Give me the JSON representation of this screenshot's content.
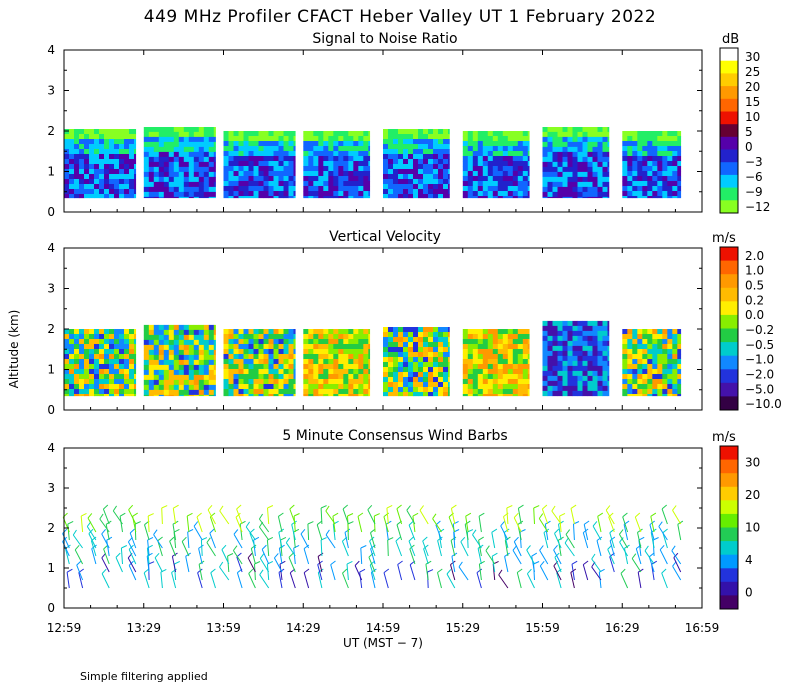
{
  "figure": {
    "title": "449 MHz Profiler CFACT Heber Valley UT  1 February 2022",
    "footnote": "Simple filtering applied",
    "xlabel": "UT  (MST − 7)",
    "ylabel": "Altitude (km)"
  },
  "chart_data": [
    {
      "type": "heatmap",
      "title": "Signal to Noise Ratio",
      "unit": "dB",
      "x_ticks": [
        "12:59",
        "13:29",
        "13:59",
        "14:29",
        "14:59",
        "15:29",
        "15:59",
        "16:29",
        "16:59"
      ],
      "y_ticks": [
        "0",
        "1",
        "2",
        "3",
        "4"
      ],
      "ylim": [
        0,
        4
      ],
      "colorbar_labels": [
        "30",
        "25",
        "20",
        "15",
        "10",
        "5",
        "0",
        "−3",
        "−6",
        "−9",
        "−12"
      ],
      "colorbar_colors": [
        "#ffffff",
        "#ffff00",
        "#ffcc00",
        "#ff9900",
        "#ff6600",
        "#ee1100",
        "#660033",
        "#5500aa",
        "#2222cc",
        "#1166ff",
        "#00ccff",
        "#22ee66",
        "#88ff22"
      ],
      "segments": [
        {
          "start": "12:59",
          "end": "13:26",
          "top_km": 2.05
        },
        {
          "start": "13:29",
          "end": "13:56",
          "top_km": 2.1
        },
        {
          "start": "13:59",
          "end": "14:26",
          "top_km": 2.0
        },
        {
          "start": "14:29",
          "end": "14:54",
          "top_km": 2.0
        },
        {
          "start": "14:59",
          "end": "15:24",
          "top_km": 2.05
        },
        {
          "start": "15:29",
          "end": "15:54",
          "top_km": 2.0
        },
        {
          "start": "15:59",
          "end": "16:24",
          "top_km": 2.1
        },
        {
          "start": "16:29",
          "end": "16:51",
          "top_km": 2.0
        }
      ]
    },
    {
      "type": "heatmap",
      "title": "Vertical Velocity",
      "unit": "m/s",
      "x_ticks": [
        "12:59",
        "13:29",
        "13:59",
        "14:29",
        "14:59",
        "15:29",
        "15:59",
        "16:29",
        "16:59"
      ],
      "y_ticks": [
        "0",
        "1",
        "2",
        "3",
        "4"
      ],
      "ylim": [
        0,
        4
      ],
      "colorbar_labels": [
        "2.0",
        "1.0",
        "0.5",
        "0.2",
        "0.0",
        "−0.2",
        "−0.5",
        "−1.0",
        "−2.0",
        "−5.0",
        "−10.0"
      ],
      "colorbar_colors": [
        "#ee1100",
        "#ff6600",
        "#ff9900",
        "#ffbb00",
        "#ffee00",
        "#88ee00",
        "#22cc44",
        "#00cccc",
        "#1188ff",
        "#2233dd",
        "#4411aa",
        "#330044"
      ],
      "segments": [
        {
          "start": "12:59",
          "end": "13:26",
          "top_km": 2.0
        },
        {
          "start": "13:29",
          "end": "13:56",
          "top_km": 2.1
        },
        {
          "start": "13:59",
          "end": "14:26",
          "top_km": 2.0
        },
        {
          "start": "14:29",
          "end": "14:54",
          "top_km": 2.0
        },
        {
          "start": "14:59",
          "end": "15:24",
          "top_km": 2.05
        },
        {
          "start": "15:29",
          "end": "15:54",
          "top_km": 2.0
        },
        {
          "start": "15:59",
          "end": "16:24",
          "top_km": 2.2
        },
        {
          "start": "16:29",
          "end": "16:51",
          "top_km": 2.0
        }
      ]
    },
    {
      "type": "scatter",
      "title": "5 Minute Consensus Wind Barbs",
      "unit": "m/s",
      "x_ticks": [
        "12:59",
        "13:29",
        "13:59",
        "14:29",
        "14:59",
        "15:29",
        "15:59",
        "16:29",
        "16:59"
      ],
      "y_ticks": [
        "0",
        "1",
        "2",
        "3",
        "4"
      ],
      "ylim": [
        0,
        4
      ],
      "colorbar_labels": [
        "30",
        "20",
        "10",
        "4",
        "0"
      ],
      "colorbar_colors": [
        "#ee1100",
        "#ff6600",
        "#ff9900",
        "#ffcc00",
        "#ccff00",
        "#66ee00",
        "#22cc55",
        "#00cccc",
        "#0099ff",
        "#2233dd",
        "#3311aa",
        "#440066"
      ]
    }
  ]
}
